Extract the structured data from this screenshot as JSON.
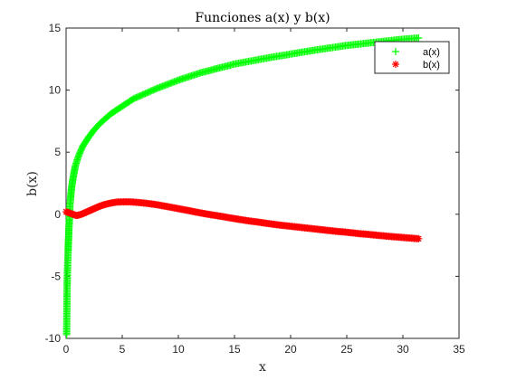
{
  "chart_data": {
    "type": "scatter",
    "title": "Funciones a(x) y b(x)",
    "xlabel": "x",
    "ylabel": "b(x)",
    "xlim": [
      0,
      35
    ],
    "ylim": [
      -10,
      15
    ],
    "xticks": [
      0,
      5,
      10,
      15,
      20,
      25,
      30,
      35
    ],
    "yticks": [
      -10,
      -5,
      0,
      5,
      10,
      15
    ],
    "grid": false,
    "legend_position": "top-right",
    "series": [
      {
        "name": "a(x)",
        "marker": "+",
        "color": "#00ff00",
        "points": [
          [
            0.05,
            -9.7
          ],
          [
            0.08,
            -6.6
          ],
          [
            0.1,
            -5.5
          ],
          [
            0.12,
            -4.6
          ],
          [
            0.15,
            -3.8
          ],
          [
            0.18,
            -3.0
          ],
          [
            0.2,
            -2.4
          ],
          [
            0.23,
            -1.8
          ],
          [
            0.25,
            -1.2
          ],
          [
            0.28,
            -0.7
          ],
          [
            0.3,
            -0.2
          ],
          [
            0.33,
            0.3
          ],
          [
            0.35,
            0.8
          ],
          [
            0.4,
            1.3
          ],
          [
            0.45,
            1.8
          ],
          [
            0.5,
            2.2
          ],
          [
            0.6,
            2.8
          ],
          [
            0.7,
            3.3
          ],
          [
            0.8,
            3.8
          ],
          [
            1.0,
            4.4
          ],
          [
            1.2,
            4.9
          ],
          [
            1.5,
            5.5
          ],
          [
            2,
            6.2
          ],
          [
            2.5,
            6.8
          ],
          [
            3,
            7.3
          ],
          [
            4,
            8.1
          ],
          [
            5,
            8.7
          ],
          [
            6,
            9.3
          ],
          [
            8,
            10.1
          ],
          [
            10,
            10.8
          ],
          [
            12,
            11.4
          ],
          [
            15,
            12.1
          ],
          [
            18,
            12.6
          ],
          [
            20,
            12.9
          ],
          [
            22,
            13.2
          ],
          [
            25,
            13.6
          ],
          [
            28,
            13.9
          ],
          [
            30,
            14.1
          ],
          [
            31.4,
            14.2
          ]
        ]
      },
      {
        "name": "b(x)",
        "marker": "*",
        "color": "#ff0000",
        "points": [
          [
            0.0,
            0.2
          ],
          [
            0.3,
            0.1
          ],
          [
            0.6,
            0.0
          ],
          [
            0.9,
            -0.1
          ],
          [
            1.2,
            -0.05
          ],
          [
            1.5,
            0.05
          ],
          [
            2,
            0.25
          ],
          [
            2.5,
            0.45
          ],
          [
            3,
            0.65
          ],
          [
            3.5,
            0.8
          ],
          [
            4,
            0.9
          ],
          [
            4.5,
            0.98
          ],
          [
            5,
            1.0
          ],
          [
            5.5,
            1.0
          ],
          [
            6,
            0.98
          ],
          [
            7,
            0.9
          ],
          [
            8,
            0.78
          ],
          [
            9,
            0.62
          ],
          [
            10,
            0.45
          ],
          [
            11,
            0.28
          ],
          [
            12,
            0.1
          ],
          [
            13,
            -0.05
          ],
          [
            14,
            -0.2
          ],
          [
            15,
            -0.35
          ],
          [
            16,
            -0.5
          ],
          [
            17,
            -0.62
          ],
          [
            18,
            -0.75
          ],
          [
            19,
            -0.87
          ],
          [
            20,
            -0.97
          ],
          [
            21,
            -1.07
          ],
          [
            22,
            -1.17
          ],
          [
            23,
            -1.27
          ],
          [
            24,
            -1.37
          ],
          [
            25,
            -1.45
          ],
          [
            26,
            -1.55
          ],
          [
            27,
            -1.63
          ],
          [
            28,
            -1.72
          ],
          [
            29,
            -1.8
          ],
          [
            30,
            -1.87
          ],
          [
            31.4,
            -1.97
          ]
        ]
      }
    ]
  }
}
